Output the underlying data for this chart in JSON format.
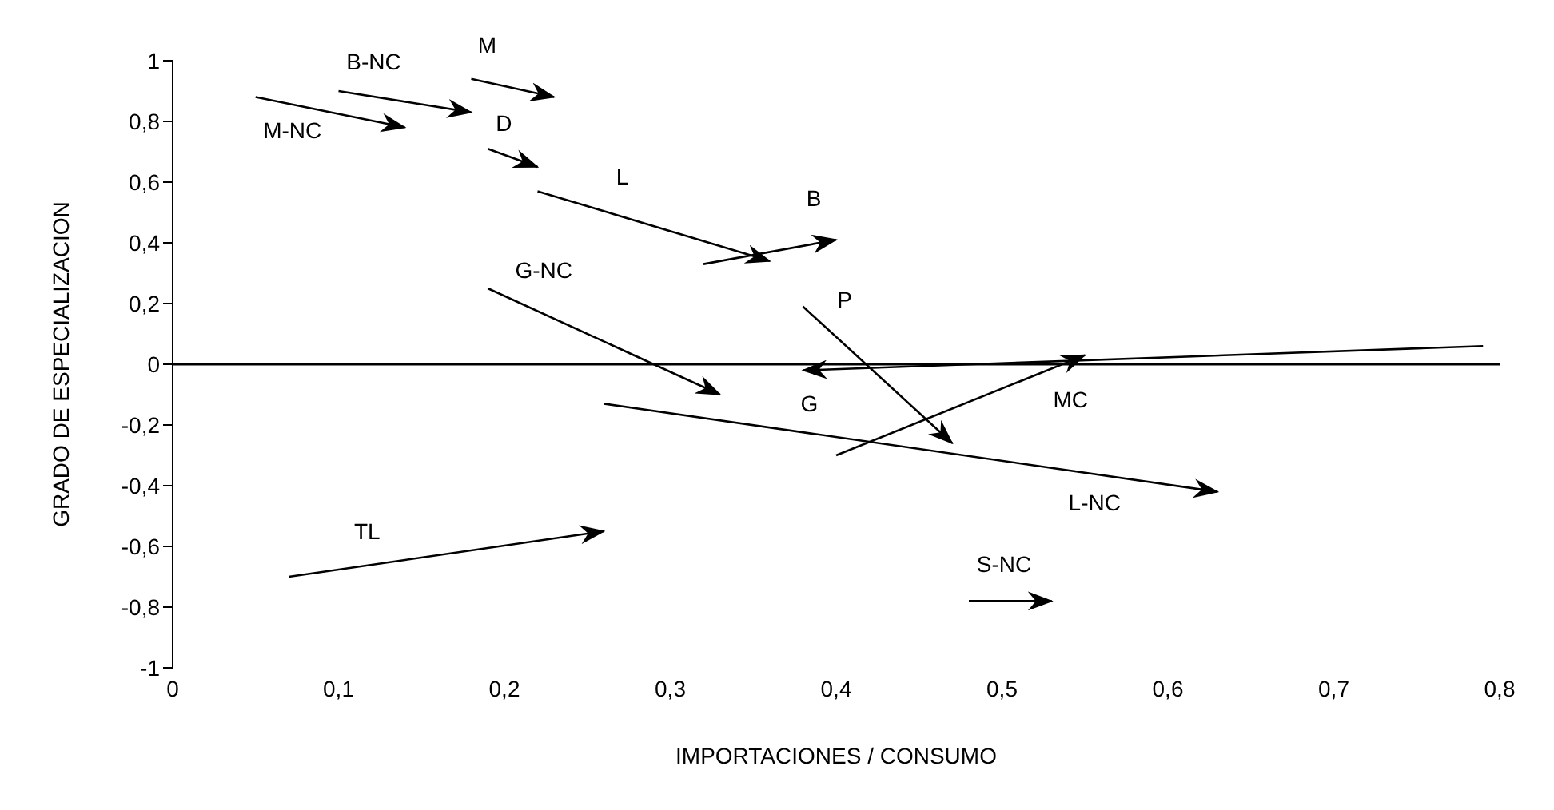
{
  "chart_data": {
    "type": "line",
    "xlabel": "IMPORTACIONES / CONSUMO",
    "ylabel": "GRADO DE ESPECIALIZACION",
    "xlim": [
      0,
      0.8
    ],
    "xticks": [
      0,
      {
        "value": 0.1,
        "label": "0,1"
      },
      {
        "value": 0.2,
        "label": "0,2"
      },
      {
        "value": 0.3,
        "label": "0,3"
      },
      {
        "value": 0.4,
        "label": "0,4"
      },
      {
        "value": 0.5,
        "label": "0,5"
      },
      {
        "value": 0.6,
        "label": "0,6"
      },
      {
        "value": 0.7,
        "label": "0,7"
      },
      {
        "value": 0.8,
        "label": "0,8"
      }
    ],
    "ylim": [
      -1,
      1
    ],
    "yticks": [
      {
        "value": -1,
        "label": "-1"
      },
      {
        "value": -0.8,
        "label": "-0,8"
      },
      {
        "value": -0.6,
        "label": "-0,6"
      },
      {
        "value": -0.4,
        "label": "-0,4"
      },
      {
        "value": -0.2,
        "label": "-0,2"
      },
      0,
      {
        "value": 0.2,
        "label": "0,2"
      },
      {
        "value": 0.4,
        "label": "0,4"
      },
      {
        "value": 0.6,
        "label": "0,6"
      },
      {
        "value": 0.8,
        "label": "0,8"
      },
      1
    ],
    "ref_lines": [
      {
        "axis": "y",
        "value": 0,
        "color": "#000000"
      }
    ],
    "series": [
      {
        "name": "M-NC",
        "color": "#000000",
        "x": [
          0.05,
          0.14
        ],
        "values": [
          0.88,
          0.78
        ]
      },
      {
        "name": "B-NC",
        "color": "#000000",
        "x": [
          0.1,
          0.18
        ],
        "values": [
          0.9,
          0.83
        ]
      },
      {
        "name": "M",
        "color": "#000000",
        "x": [
          0.18,
          0.23
        ],
        "values": [
          0.94,
          0.88
        ]
      },
      {
        "name": "D",
        "color": "#000000",
        "x": [
          0.19,
          0.22
        ],
        "values": [
          0.71,
          0.65
        ]
      },
      {
        "name": "L",
        "color": "#000000",
        "x": [
          0.22,
          0.36
        ],
        "values": [
          0.57,
          0.34
        ]
      },
      {
        "name": "B",
        "color": "#000000",
        "x": [
          0.32,
          0.4
        ],
        "values": [
          0.33,
          0.41
        ]
      },
      {
        "name": "G-NC",
        "color": "#000000",
        "x": [
          0.19,
          0.33
        ],
        "values": [
          0.25,
          -0.1
        ]
      },
      {
        "name": "P",
        "color": "#000000",
        "x": [
          0.38,
          0.47
        ],
        "values": [
          0.19,
          -0.26
        ]
      },
      {
        "name": "G",
        "color": "#000000",
        "x": [
          0.79,
          0.38
        ],
        "values": [
          0.06,
          -0.02
        ]
      },
      {
        "name": "MC",
        "color": "#000000",
        "x": [
          0.4,
          0.55
        ],
        "values": [
          -0.3,
          0.03
        ]
      },
      {
        "name": "L-NC",
        "color": "#000000",
        "x": [
          0.26,
          0.63
        ],
        "values": [
          -0.13,
          -0.42
        ]
      },
      {
        "name": "TL",
        "color": "#000000",
        "x": [
          0.07,
          0.26
        ],
        "values": [
          -0.7,
          -0.55
        ]
      },
      {
        "name": "S-NC",
        "color": "#000000",
        "x": [
          0.48,
          0.53
        ],
        "values": [
          -0.78,
          -0.78
        ]
      }
    ]
  }
}
